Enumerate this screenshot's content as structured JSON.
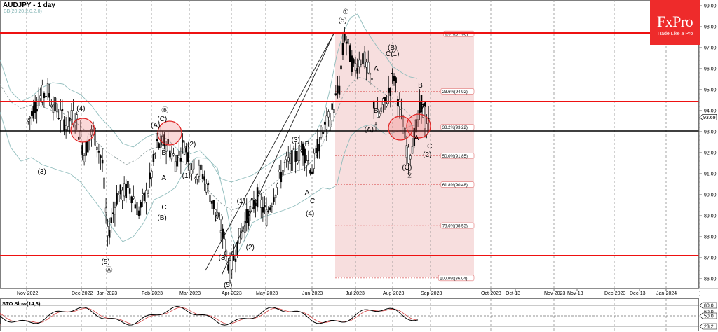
{
  "header": {
    "title": "AUDJPY - 1 day",
    "indicator": "BB(20,20,2.0,2.0)"
  },
  "logo": {
    "brand": "FxPro",
    "tagline": "Trade Like a Pro",
    "color": "#ee2b2b"
  },
  "colors": {
    "resistance_line": "#ee1111",
    "support_line": "#000000",
    "bollinger": "#8fbcbc",
    "fib_zone": "#f7dede",
    "fib_line": "#e07070",
    "circle": "#e02020",
    "sto_main": "#000000",
    "sto_signal": "#d04040"
  },
  "chart_data": [
    {
      "type": "candlestick",
      "title": "AUDJPY - 1 day",
      "indicator": "BB(20,20,2.0,2.0)",
      "ylim": [
        85.3,
        99.3
      ],
      "y_ticks": [
        "99.00",
        "98.00",
        "97.00",
        "96.00",
        "95.00",
        "94.00",
        "93.00",
        "92.00",
        "91.00",
        "90.00",
        "89.00",
        "88.00",
        "87.00",
        "86.00"
      ],
      "current_price": "93.69",
      "x_ticks": [
        "Nov-2022",
        "Dec-2022",
        "Jan-2023",
        "Feb-2023",
        "Mar-2023",
        "Apr-2023",
        "May-2023",
        "Jun-2023",
        "Jul-2023",
        "Aug-2023",
        "Sep-2023",
        "Oct-2023",
        "Oct-13",
        "Nov-2023",
        "Nov-13",
        "Dec-2023",
        "Dec-13",
        "Jan-2024"
      ],
      "horizontal_lines": [
        {
          "price": 97.65,
          "color": "red",
          "role": "resistance"
        },
        {
          "price": 94.35,
          "color": "red",
          "role": "resistance"
        },
        {
          "price": 92.95,
          "color": "black",
          "role": "support"
        },
        {
          "price": 87.0,
          "color": "red",
          "role": "support"
        }
      ],
      "fibonacci": [
        {
          "label": "0.0%(97.66)",
          "price": 97.66
        },
        {
          "label": "23.6%(94.92)",
          "price": 94.92
        },
        {
          "label": "38.2%(93.22)",
          "price": 93.22
        },
        {
          "label": "50.0%(91.85)",
          "price": 91.85
        },
        {
          "label": "61.8%(90.48)",
          "price": 90.48
        },
        {
          "label": "78.6%(88.53)",
          "price": 88.53
        },
        {
          "label": "100.0%(86.04)",
          "price": 86.04
        }
      ],
      "close_series": [
        {
          "date": "2022-10-20",
          "close": 93.5
        },
        {
          "date": "2022-10-28",
          "close": 94.6
        },
        {
          "date": "2022-11-04",
          "close": 94.9
        },
        {
          "date": "2022-11-11",
          "close": 94.0
        },
        {
          "date": "2022-11-18",
          "close": 93.4
        },
        {
          "date": "2022-11-25",
          "close": 93.8
        },
        {
          "date": "2022-12-02",
          "close": 92.0
        },
        {
          "date": "2022-12-09",
          "close": 93.1
        },
        {
          "date": "2022-12-16",
          "close": 91.5
        },
        {
          "date": "2022-12-20",
          "close": 88.0
        },
        {
          "date": "2022-12-27",
          "close": 89.9
        },
        {
          "date": "2023-01-06",
          "close": 90.3
        },
        {
          "date": "2023-01-13",
          "close": 89.2
        },
        {
          "date": "2023-01-20",
          "close": 90.2
        },
        {
          "date": "2023-01-27",
          "close": 92.3
        },
        {
          "date": "2023-02-03",
          "close": 92.5
        },
        {
          "date": "2023-02-10",
          "close": 91.6
        },
        {
          "date": "2023-02-17",
          "close": 92.4
        },
        {
          "date": "2023-02-24",
          "close": 91.2
        },
        {
          "date": "2023-03-03",
          "close": 91.0
        },
        {
          "date": "2023-03-10",
          "close": 89.8
        },
        {
          "date": "2023-03-17",
          "close": 88.4
        },
        {
          "date": "2023-03-24",
          "close": 86.4
        },
        {
          "date": "2023-04-03",
          "close": 88.5
        },
        {
          "date": "2023-04-14",
          "close": 89.9
        },
        {
          "date": "2023-04-21",
          "close": 89.0
        },
        {
          "date": "2023-04-28",
          "close": 90.3
        },
        {
          "date": "2023-05-05",
          "close": 91.4
        },
        {
          "date": "2023-05-12",
          "close": 91.7
        },
        {
          "date": "2023-05-19",
          "close": 92.2
        },
        {
          "date": "2023-05-26",
          "close": 91.2
        },
        {
          "date": "2023-06-02",
          "close": 92.8
        },
        {
          "date": "2023-06-09",
          "close": 93.7
        },
        {
          "date": "2023-06-16",
          "close": 95.1
        },
        {
          "date": "2023-06-20",
          "close": 97.6
        },
        {
          "date": "2023-06-27",
          "close": 96.0
        },
        {
          "date": "2023-07-04",
          "close": 96.6
        },
        {
          "date": "2023-07-11",
          "close": 95.3
        },
        {
          "date": "2023-07-14",
          "close": 93.5
        },
        {
          "date": "2023-07-21",
          "close": 94.3
        },
        {
          "date": "2023-07-28",
          "close": 95.7
        },
        {
          "date": "2023-08-04",
          "close": 93.2
        },
        {
          "date": "2023-08-08",
          "close": 91.8
        },
        {
          "date": "2023-08-14",
          "close": 93.1
        },
        {
          "date": "2023-08-18",
          "close": 94.4
        },
        {
          "date": "2023-08-22",
          "close": 93.0
        },
        {
          "date": "2023-08-25",
          "close": 93.69
        }
      ],
      "wave_labels": [
        {
          "text": "(4)",
          "date": "2022-12",
          "price": 94.0
        },
        {
          "text": "(3)",
          "date": "2022-11",
          "price": 91.0
        },
        {
          "text": "(5)",
          "date": "2022-12-20",
          "price": 86.7
        },
        {
          "text": "Ⓐ",
          "date": "2022-12-20",
          "price": 86.3
        },
        {
          "text": "Ⓑ",
          "date": "2023-02",
          "price": 93.9
        },
        {
          "text": "(C)",
          "date": "2023-02",
          "price": 93.5
        },
        {
          "text": "(A)",
          "date": "2023-01-27",
          "price": 93.2
        },
        {
          "text": "B",
          "date": "2023-02",
          "price": 91.9
        },
        {
          "text": "A",
          "date": "2023-02",
          "price": 90.7
        },
        {
          "text": "C",
          "date": "2023-02",
          "price": 89.3
        },
        {
          "text": "(B)",
          "date": "2023-02",
          "price": 88.8
        },
        {
          "text": "(2)",
          "date": "2023-02-24",
          "price": 92.3
        },
        {
          "text": "(1)",
          "date": "2023-02-20",
          "price": 90.8
        },
        {
          "text": "(4)",
          "date": "2023-03-17",
          "price": 88.8
        },
        {
          "text": "(3)",
          "date": "2023-03-20",
          "price": 86.9
        },
        {
          "text": "(5)",
          "date": "2023-03-24",
          "price": 85.6
        },
        {
          "text": "(1)",
          "date": "2023-04-03",
          "price": 89.6
        },
        {
          "text": "(2)",
          "date": "2023-04-10",
          "price": 87.4
        },
        {
          "text": "(3)",
          "date": "2023-05-15",
          "price": 92.5
        },
        {
          "text": "B",
          "date": "2023-05-22",
          "price": 92.3
        },
        {
          "text": "A",
          "date": "2023-05-22",
          "price": 90.0
        },
        {
          "text": "C",
          "date": "2023-05-26",
          "price": 89.6
        },
        {
          "text": "(4)",
          "date": "2023-05-26",
          "price": 89.0
        },
        {
          "text": "①",
          "date": "2023-06-20",
          "price": 98.6
        },
        {
          "text": "(5)",
          "date": "2023-06-20",
          "price": 98.2
        },
        {
          "text": "A",
          "date": "2023-07-14",
          "price": 95.9
        },
        {
          "text": "B",
          "date": "2023-07-14",
          "price": 93.9
        },
        {
          "text": "(A)",
          "date": "2023-07-10",
          "price": 93.0
        },
        {
          "text": "(B)",
          "date": "2023-07-28",
          "price": 96.9
        },
        {
          "text": "C(1)",
          "date": "2023-07-28",
          "price": 96.6
        },
        {
          "text": "(C)",
          "date": "2023-08-08",
          "price": 91.2
        },
        {
          "text": "②",
          "date": "2023-08-08",
          "price": 90.8
        },
        {
          "text": "A",
          "date": "2023-08-14",
          "price": 92.6
        },
        {
          "text": "B",
          "date": "2023-08-17",
          "price": 95.1
        },
        {
          "text": "C",
          "date": "2023-08-24",
          "price": 92.2
        },
        {
          "text": "(2)",
          "date": "2023-08-24",
          "price": 91.8
        }
      ]
    },
    {
      "type": "line",
      "title": "STO Slow(14,3)",
      "ylim": [
        0,
        100
      ],
      "levels": [
        "80.0",
        "60.0",
        "50.0",
        "23.2"
      ],
      "series": [
        {
          "name": "%K",
          "color": "#000000"
        },
        {
          "name": "%D",
          "color": "#d04040"
        }
      ],
      "current_value": "23.2"
    }
  ]
}
